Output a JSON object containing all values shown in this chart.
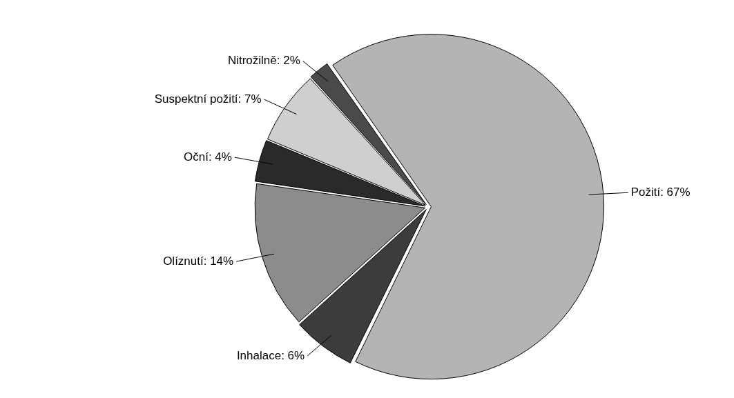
{
  "chart_data": {
    "type": "pie",
    "categories": [
      "Požití",
      "Inhalace",
      "Olíznutí",
      "Oční",
      "Suspektní požití",
      "Nitrožilně"
    ],
    "values": [
      67,
      6,
      14,
      4,
      7,
      2
    ],
    "value_labels": [
      "67%",
      "6%",
      "14%",
      "4%",
      "7%",
      "2%"
    ],
    "colors": [
      "#b4b4b4",
      "#3c3c3c",
      "#8c8c8c",
      "#2a2a2a",
      "#cfcfcf",
      "#4a4a4a"
    ],
    "legend": false
  }
}
